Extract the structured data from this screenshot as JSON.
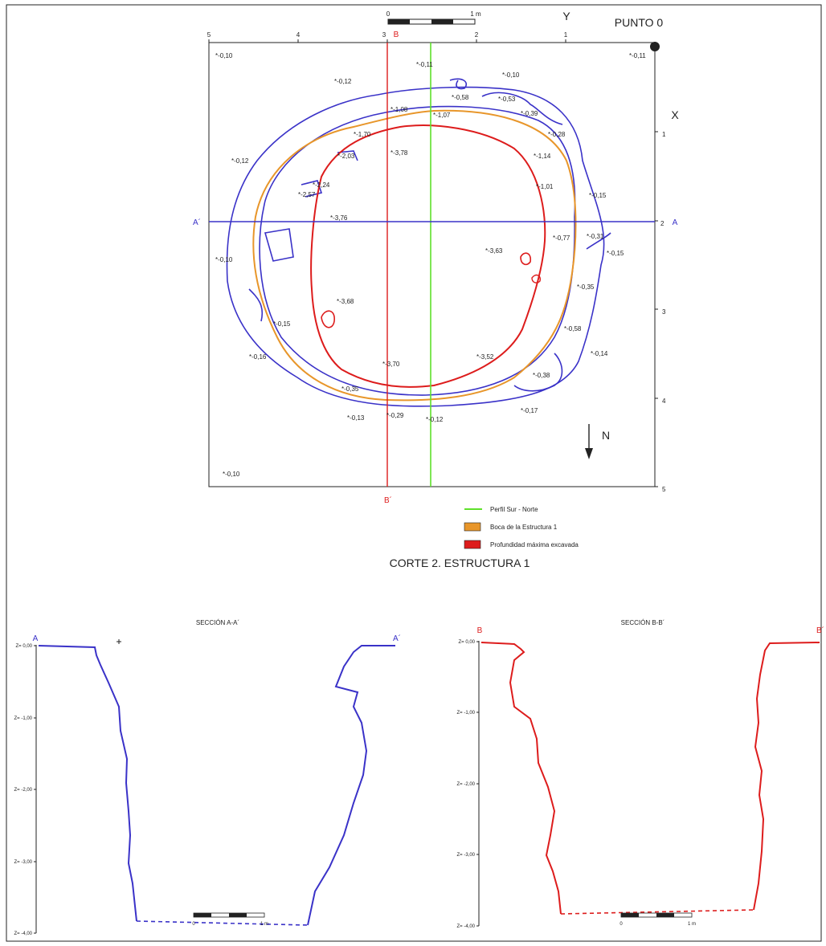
{
  "colors": {
    "blue": "#3a32c8",
    "red": "#dd1c1c",
    "orange": "#e8962a",
    "green": "#5ee02a",
    "black": "#222222"
  },
  "plan": {
    "title_point": "PUNTO 0",
    "y_axis": "Y",
    "x_axis": "X",
    "north": "N",
    "top_ticks": [
      "5",
      "4",
      "3",
      "2",
      "1"
    ],
    "right_ticks": [
      "1",
      "2",
      "3",
      "4",
      "5"
    ],
    "scale_0": "0",
    "scale_1m": "1 m",
    "label_B": "B",
    "label_B_prime": "B´",
    "label_A": "A",
    "label_A_prime": "A´",
    "elevations": [
      "*-0,10",
      "*-0,11",
      "*-0,12",
      "*-0,10",
      "*-0,11",
      "*-0,58",
      "*-0,53",
      "*-0,39",
      "*-1,08",
      "*-1,07",
      "*-0,28",
      "*-1,70",
      "*-2,03",
      "*-3,78",
      "*-1,14",
      "*-0,12",
      "*-2,24",
      "*-2,57",
      "*-1,01",
      "*-0,15",
      "*-3,76",
      "*-0,31",
      "*-0,77",
      "*-0,10",
      "*-3,63",
      "*-0,15",
      "*-0,35",
      "*-3,68",
      "*-0,15",
      "*-0,58",
      "*-0,16",
      "*-3,70",
      "*-3,52",
      "*-0,14",
      "*-0,38",
      "*-0,35",
      "*-0,29",
      "*-0,13",
      "*-0,12",
      "*-0,17",
      "*-0,10"
    ]
  },
  "legend": [
    {
      "label": "Perfil Sur - Norte",
      "color": "#5ee02a",
      "kind": "line"
    },
    {
      "label": "Boca de la Estructura 1",
      "color": "#e8962a",
      "kind": "box"
    },
    {
      "label": "Profundidad máxima excavada",
      "color": "#dd1c1c",
      "kind": "box"
    }
  ],
  "main_title": "CORTE 2. ESTRUCTURA 1",
  "sections": [
    {
      "title": "SECCIÓN A-A´",
      "left_label": "A",
      "right_label": "A´",
      "z_labels": [
        "Z= 0,00",
        "Z= -1,00",
        "Z= -2,00",
        "Z= -3,00",
        "Z= -4,00"
      ],
      "scale_0": "0",
      "scale_1m": "1 m"
    },
    {
      "title": "SECCIÓN B-B´",
      "left_label": "B",
      "right_label": "B´",
      "z_labels": [
        "Z= 0,00",
        "Z= -1,00",
        "Z= -2,00",
        "Z= -3,00",
        "Z= -4,00"
      ],
      "scale_0": "0",
      "scale_1m": "1 m"
    }
  ]
}
